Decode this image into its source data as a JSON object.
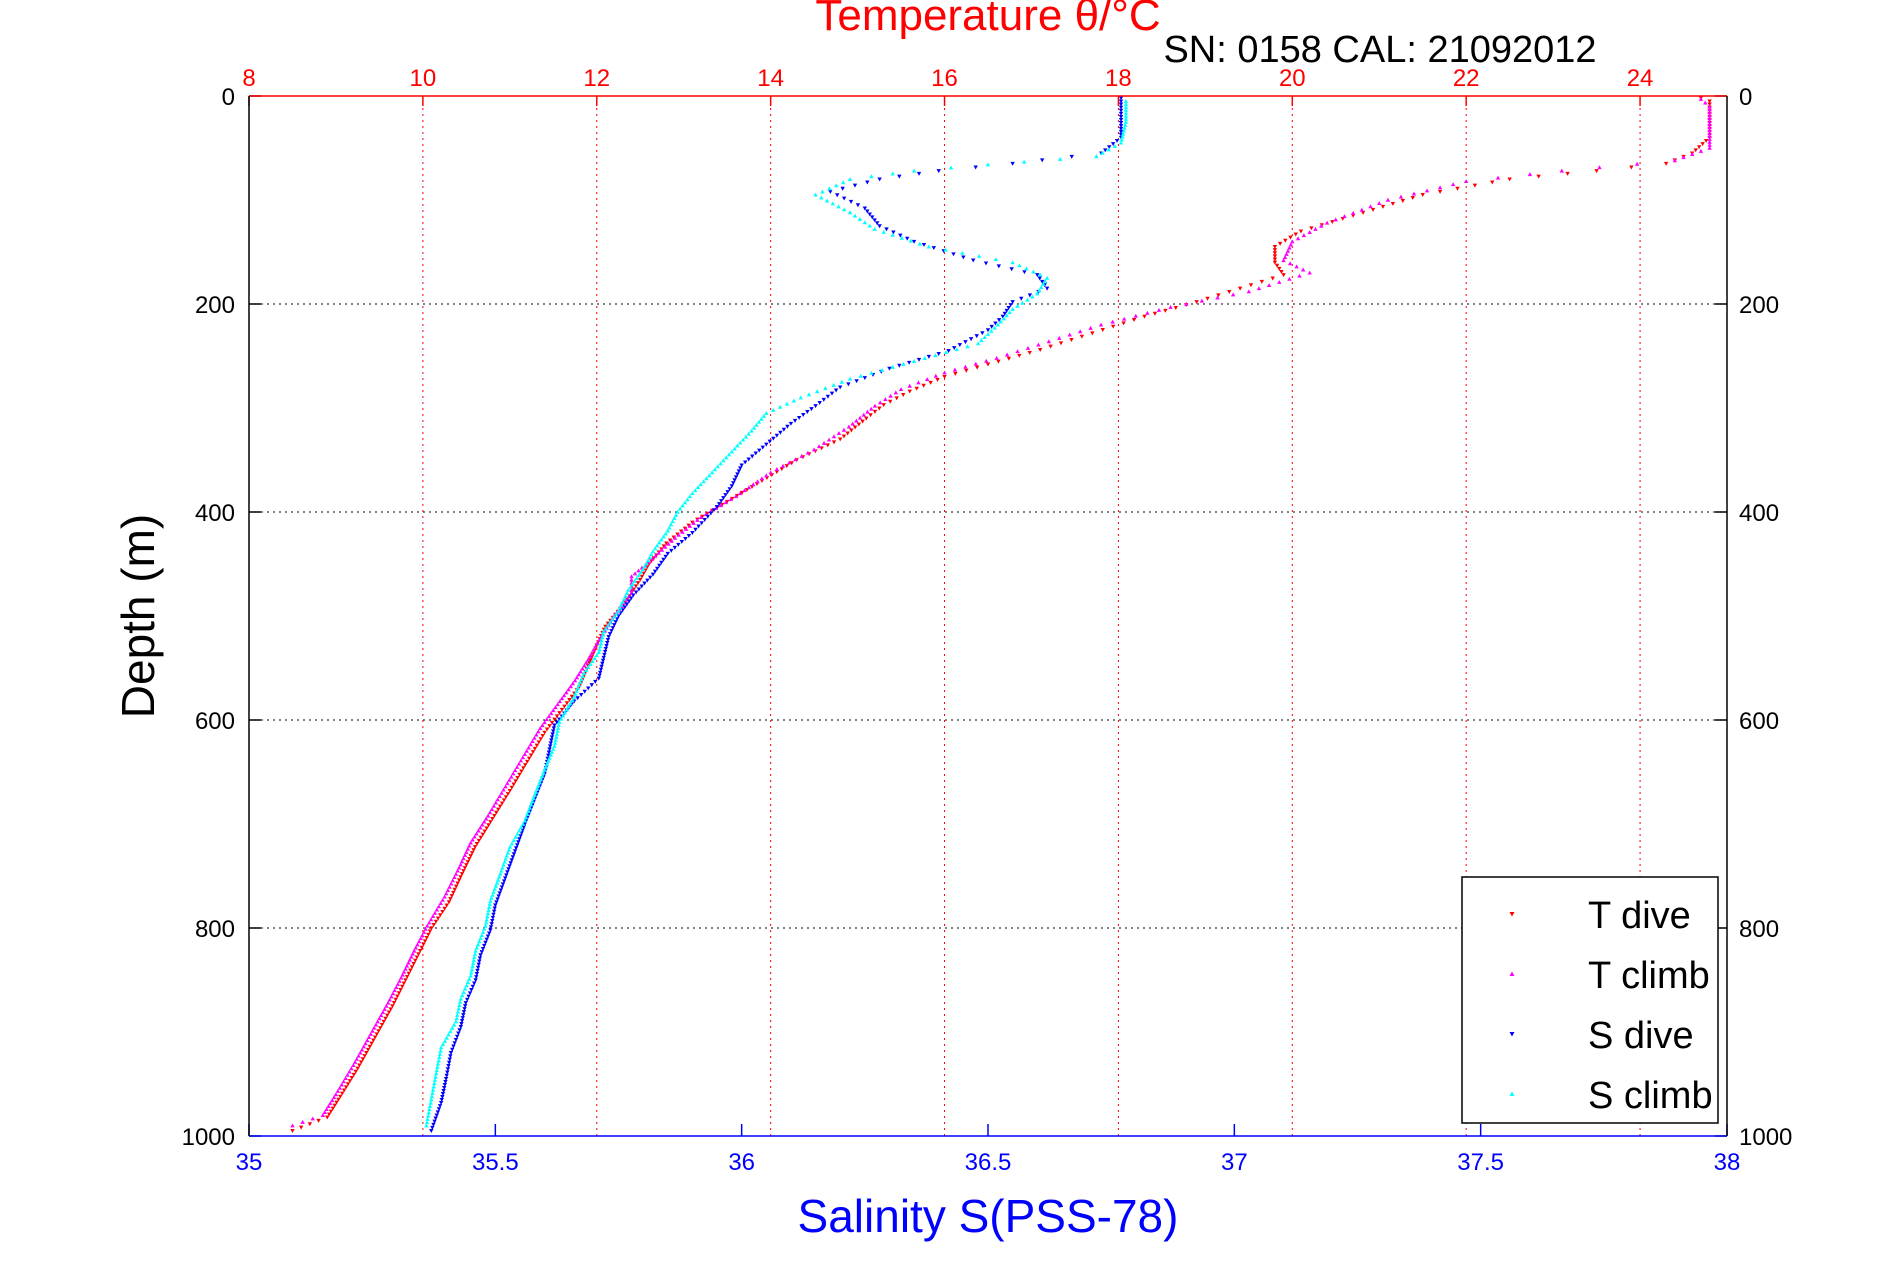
{
  "chart_data": {
    "type": "scatter",
    "title": "Temperature θ/°C",
    "subtitle": "SN: 0158  CAL: 21092012",
    "xlabel": "Salinity S(PSS-78)",
    "ylabel": "Depth (m)",
    "x_salinity": {
      "lim": [
        35,
        38
      ],
      "ticks": [
        35,
        35.5,
        36,
        36.5,
        37,
        37.5,
        38
      ],
      "tick_labels": [
        "35",
        "35.5",
        "36",
        "36.5",
        "37",
        "37.5",
        "38"
      ]
    },
    "x_temperature": {
      "lim": [
        8,
        25
      ],
      "ticks": [
        8,
        10,
        12,
        14,
        16,
        18,
        20,
        22,
        24
      ],
      "tick_labels": [
        "8",
        "10",
        "12",
        "14",
        "16",
        "18",
        "20",
        "22",
        "24"
      ]
    },
    "y_depth": {
      "lim": [
        0,
        1000
      ],
      "reversed": true,
      "ticks": [
        0,
        200,
        400,
        600,
        800,
        1000
      ],
      "tick_labels": [
        "0",
        "200",
        "400",
        "600",
        "800",
        "1000"
      ]
    },
    "grid": true,
    "legend_position": "bottom-right",
    "series": [
      {
        "name": "T dive",
        "axis": "temperature",
        "color": "#ff0000",
        "marker": "triangle-down",
        "points": [
          [
            24.7,
            2
          ],
          [
            24.8,
            5
          ],
          [
            24.8,
            20
          ],
          [
            24.8,
            40
          ],
          [
            24.6,
            55
          ],
          [
            24.3,
            65
          ],
          [
            23.5,
            72
          ],
          [
            22.5,
            80
          ],
          [
            21.5,
            95
          ],
          [
            20.7,
            115
          ],
          [
            20.1,
            130
          ],
          [
            19.8,
            145
          ],
          [
            19.8,
            160
          ],
          [
            19.9,
            172
          ],
          [
            19.4,
            185
          ],
          [
            18.9,
            198
          ],
          [
            18.3,
            212
          ],
          [
            17.7,
            228
          ],
          [
            17.1,
            244
          ],
          [
            16.5,
            258
          ],
          [
            16.0,
            270
          ],
          [
            15.6,
            284
          ],
          [
            15.3,
            297
          ],
          [
            15.1,
            310
          ],
          [
            14.8,
            330
          ],
          [
            14.3,
            350
          ],
          [
            13.9,
            370
          ],
          [
            13.5,
            390
          ],
          [
            13.1,
            410
          ],
          [
            12.8,
            430
          ],
          [
            12.6,
            450
          ],
          [
            12.5,
            465
          ],
          [
            12.3,
            490
          ],
          [
            12.1,
            510
          ],
          [
            12.0,
            528
          ],
          [
            11.9,
            548
          ],
          [
            11.8,
            568
          ],
          [
            11.6,
            590
          ],
          [
            11.4,
            612
          ],
          [
            11.2,
            640
          ],
          [
            11.0,
            668
          ],
          [
            10.8,
            695
          ],
          [
            10.6,
            722
          ],
          [
            10.45,
            748
          ],
          [
            10.3,
            775
          ],
          [
            10.1,
            800
          ],
          [
            9.95,
            825
          ],
          [
            9.8,
            850
          ],
          [
            9.65,
            875
          ],
          [
            9.45,
            905
          ],
          [
            9.25,
            935
          ],
          [
            9.05,
            962
          ],
          [
            8.9,
            982
          ],
          [
            8.5,
            995
          ]
        ]
      },
      {
        "name": "T climb",
        "axis": "temperature",
        "color": "#ff00ff",
        "marker": "triangle-up",
        "points": [
          [
            24.7,
            3
          ],
          [
            24.8,
            10
          ],
          [
            24.8,
            30
          ],
          [
            24.8,
            50
          ],
          [
            24.4,
            62
          ],
          [
            23.1,
            72
          ],
          [
            22.0,
            82
          ],
          [
            21.1,
            100
          ],
          [
            20.4,
            122
          ],
          [
            20.0,
            140
          ],
          [
            19.9,
            158
          ],
          [
            20.2,
            170
          ],
          [
            19.5,
            188
          ],
          [
            18.6,
            203
          ],
          [
            17.8,
            220
          ],
          [
            17.2,
            236
          ],
          [
            16.6,
            252
          ],
          [
            16.0,
            266
          ],
          [
            15.5,
            282
          ],
          [
            15.2,
            298
          ],
          [
            14.9,
            318
          ],
          [
            14.5,
            340
          ],
          [
            14.0,
            362
          ],
          [
            13.6,
            385
          ],
          [
            13.2,
            405
          ],
          [
            12.9,
            425
          ],
          [
            12.6,
            448
          ],
          [
            12.4,
            462
          ],
          [
            12.4,
            478
          ],
          [
            12.2,
            500
          ],
          [
            12.05,
            520
          ],
          [
            11.9,
            542
          ],
          [
            11.75,
            562
          ],
          [
            11.55,
            585
          ],
          [
            11.35,
            608
          ],
          [
            11.15,
            636
          ],
          [
            10.95,
            664
          ],
          [
            10.75,
            692
          ],
          [
            10.55,
            718
          ],
          [
            10.4,
            745
          ],
          [
            10.25,
            770
          ],
          [
            10.05,
            798
          ],
          [
            9.9,
            822
          ],
          [
            9.75,
            848
          ],
          [
            9.6,
            872
          ],
          [
            9.4,
            902
          ],
          [
            9.2,
            932
          ],
          [
            9.0,
            960
          ],
          [
            8.85,
            980
          ],
          [
            8.5,
            990
          ]
        ]
      },
      {
        "name": "S dive",
        "axis": "salinity",
        "color": "#0000ff",
        "marker": "triangle-down",
        "points": [
          [
            36.77,
            2
          ],
          [
            36.77,
            20
          ],
          [
            36.77,
            40
          ],
          [
            36.73,
            55
          ],
          [
            36.55,
            65
          ],
          [
            36.4,
            72
          ],
          [
            36.28,
            80
          ],
          [
            36.18,
            92
          ],
          [
            36.25,
            108
          ],
          [
            36.28,
            125
          ],
          [
            36.35,
            140
          ],
          [
            36.47,
            158
          ],
          [
            36.6,
            172
          ],
          [
            36.62,
            185
          ],
          [
            36.55,
            198
          ],
          [
            36.53,
            212
          ],
          [
            36.5,
            225
          ],
          [
            36.42,
            245
          ],
          [
            36.3,
            262
          ],
          [
            36.2,
            280
          ],
          [
            36.15,
            298
          ],
          [
            36.1,
            315
          ],
          [
            36.05,
            335
          ],
          [
            36.0,
            355
          ],
          [
            35.98,
            375
          ],
          [
            35.95,
            395
          ],
          [
            35.9,
            420
          ],
          [
            35.85,
            440
          ],
          [
            35.82,
            460
          ],
          [
            35.78,
            480
          ],
          [
            35.75,
            500
          ],
          [
            35.73,
            520
          ],
          [
            35.72,
            540
          ],
          [
            35.71,
            560
          ],
          [
            35.66,
            582
          ],
          [
            35.62,
            605
          ],
          [
            35.61,
            628
          ],
          [
            35.6,
            652
          ],
          [
            35.58,
            676
          ],
          [
            35.56,
            700
          ],
          [
            35.54,
            726
          ],
          [
            35.52,
            752
          ],
          [
            35.5,
            778
          ],
          [
            35.49,
            802
          ],
          [
            35.47,
            826
          ],
          [
            35.46,
            850
          ],
          [
            35.44,
            872
          ],
          [
            35.43,
            895
          ],
          [
            35.41,
            920
          ],
          [
            35.4,
            945
          ],
          [
            35.39,
            968
          ],
          [
            35.37,
            995
          ]
        ]
      },
      {
        "name": "S climb",
        "axis": "salinity",
        "color": "#00ffff",
        "marker": "triangle-up",
        "points": [
          [
            36.78,
            5
          ],
          [
            36.78,
            25
          ],
          [
            36.77,
            45
          ],
          [
            36.72,
            58
          ],
          [
            36.5,
            66
          ],
          [
            36.35,
            72
          ],
          [
            36.22,
            80
          ],
          [
            36.15,
            95
          ],
          [
            36.22,
            112
          ],
          [
            36.27,
            128
          ],
          [
            36.38,
            145
          ],
          [
            36.55,
            160
          ],
          [
            36.62,
            175
          ],
          [
            36.6,
            190
          ],
          [
            36.55,
            205
          ],
          [
            36.52,
            220
          ],
          [
            36.48,
            238
          ],
          [
            36.35,
            255
          ],
          [
            36.22,
            272
          ],
          [
            36.12,
            290
          ],
          [
            36.05,
            305
          ],
          [
            36.02,
            322
          ],
          [
            35.98,
            342
          ],
          [
            35.94,
            362
          ],
          [
            35.9,
            382
          ],
          [
            35.87,
            400
          ],
          [
            35.85,
            418
          ],
          [
            35.82,
            438
          ],
          [
            35.8,
            455
          ],
          [
            35.77,
            475
          ],
          [
            35.75,
            495
          ],
          [
            35.72,
            515
          ],
          [
            35.71,
            535
          ],
          [
            35.68,
            555
          ],
          [
            35.66,
            578
          ],
          [
            35.63,
            602
          ],
          [
            35.62,
            625
          ],
          [
            35.6,
            648
          ],
          [
            35.58,
            672
          ],
          [
            35.56,
            697
          ],
          [
            35.53,
            722
          ],
          [
            35.51,
            748
          ],
          [
            35.49,
            774
          ],
          [
            35.48,
            798
          ],
          [
            35.46,
            822
          ],
          [
            35.45,
            846
          ],
          [
            35.43,
            868
          ],
          [
            35.42,
            890
          ],
          [
            35.39,
            915
          ],
          [
            35.38,
            940
          ],
          [
            35.37,
            965
          ],
          [
            35.36,
            990
          ]
        ]
      }
    ]
  }
}
